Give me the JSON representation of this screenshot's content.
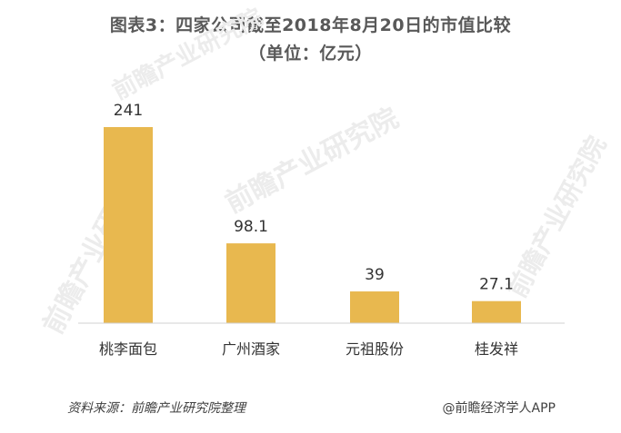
{
  "title": "图表3：四家公司截至2018年8月20日的市值比较",
  "subtitle": "（单位：亿元）",
  "chart_data": {
    "type": "bar",
    "categories": [
      "桃李面包",
      "广州酒家",
      "元祖股份",
      "桂发祥"
    ],
    "values": [
      241,
      98.1,
      39,
      27.1
    ],
    "value_labels": [
      "241",
      "98.1",
      "39",
      "27.1"
    ],
    "title": "图表3：四家公司截至2018年8月20日的市值比较",
    "subtitle": "（单位：亿元）",
    "xlabel": "",
    "ylabel": "",
    "ylim": [
      0,
      241
    ],
    "grid": false,
    "legend": "none",
    "bar_color": "#E8B84F"
  },
  "footer": {
    "source": "资料来源：前瞻产业研究院整理",
    "app": "@前瞻经济学人APP"
  },
  "watermark": {
    "text": "前瞻产业研究院",
    "color": "#ECECEC"
  }
}
